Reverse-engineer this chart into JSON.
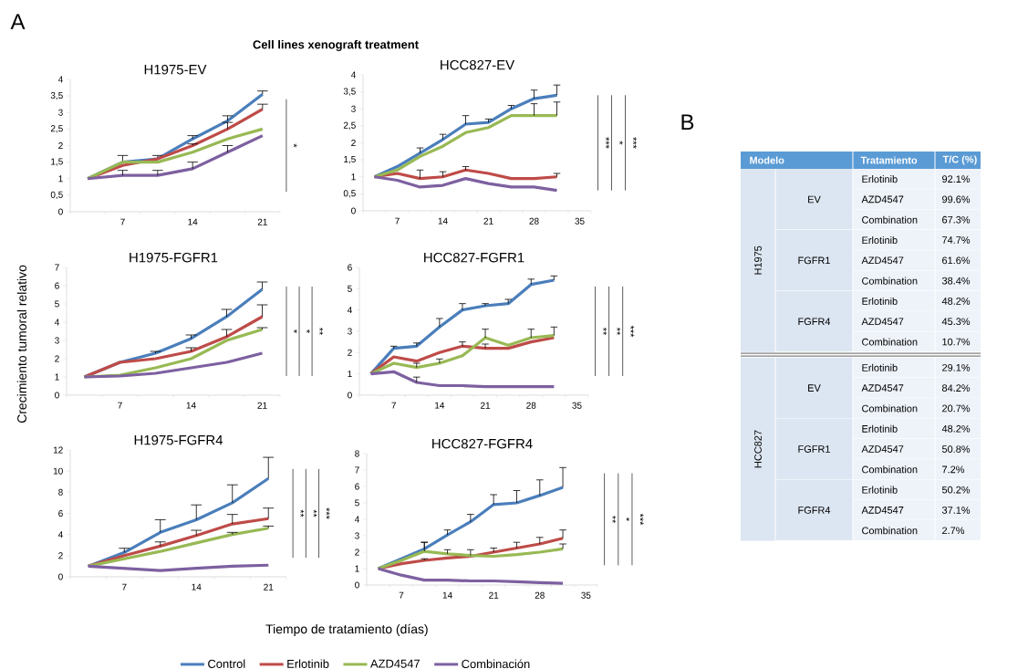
{
  "chart_data": [
    {
      "type": "line",
      "title": "H1975-EV",
      "subtitle": "Cell lines xenograft treatment",
      "annotations": [
        "A",
        "*"
      ],
      "categories": [
        null,
        "7",
        null,
        "14",
        null,
        "21"
      ],
      "ylim": [
        0,
        4
      ],
      "yticks": [
        0,
        {
          "value": 0.5,
          "label": "0,5"
        },
        1,
        {
          "value": 1.5,
          "label": "1,5"
        },
        2,
        {
          "value": 2.5,
          "label": "2,5"
        },
        3,
        {
          "value": 3.5,
          "label": "3,5"
        },
        4
      ],
      "series": [
        {
          "color": "#4a7ebb",
          "values": [
            1,
            1.5,
            1.6,
            2.2,
            2.75,
            3.55
          ],
          "errors": [
            null,
            [
              1.5,
              1.7
            ],
            [
              1.6,
              1.7
            ],
            [
              2.2,
              2.3
            ],
            [
              2.75,
              2.9
            ],
            [
              3.55,
              3.65
            ]
          ]
        },
        {
          "color": "#be4b48",
          "values": [
            1,
            1.4,
            1.6,
            2.0,
            2.5,
            3.1
          ],
          "errors": [
            null,
            null,
            null,
            [
              2.0,
              2.05
            ],
            [
              2.5,
              2.7
            ],
            [
              3.1,
              3.25
            ]
          ]
        },
        {
          "color": "#98b954",
          "values": [
            1,
            1.5,
            1.5,
            1.8,
            2.2,
            2.5
          ]
        },
        {
          "color": "#7d60a0",
          "values": [
            1,
            1.1,
            1.1,
            1.3,
            1.8,
            2.3
          ],
          "errors": [
            null,
            [
              1.1,
              1.25
            ],
            [
              1.1,
              1.25
            ],
            [
              1.3,
              1.5
            ],
            [
              1.8,
              2.0
            ],
            null
          ]
        }
      ]
    },
    {
      "type": "line",
      "title": "HCC827-EV",
      "annotations": [
        "***",
        "*",
        "***"
      ],
      "categories": [
        null,
        "7",
        null,
        "14",
        null,
        "21",
        null,
        "28",
        null,
        "35"
      ],
      "ylim": [
        0,
        4
      ],
      "yticks": [
        0,
        {
          "value": 0.5,
          "label": "0,5"
        },
        1,
        {
          "value": 1.5,
          "label": "1,5"
        },
        2,
        {
          "value": 2.5,
          "label": "2,5"
        },
        3,
        {
          "value": 3.5,
          "label": "3,5"
        },
        4
      ],
      "series": [
        {
          "color": "#4a7ebb",
          "values": [
            1,
            1.3,
            1.7,
            2.1,
            2.55,
            2.6,
            3.0,
            3.3,
            3.4,
            null
          ],
          "errors": [
            null,
            null,
            [
              1.7,
              1.85
            ],
            [
              2.1,
              2.25
            ],
            [
              2.55,
              2.8
            ],
            [
              2.6,
              2.7
            ],
            [
              3.0,
              3.1
            ],
            [
              3.3,
              3.55
            ],
            [
              3.4,
              3.7
            ],
            null
          ]
        },
        {
          "color": "#be4b48",
          "values": [
            1,
            1.1,
            0.95,
            1.0,
            1.2,
            1.1,
            0.95,
            0.95,
            1.0,
            null
          ],
          "errors": [
            null,
            null,
            [
              0.95,
              1.2
            ],
            [
              1.0,
              1.15
            ],
            [
              1.2,
              1.3
            ],
            null,
            null,
            null,
            [
              1.0,
              1.1
            ],
            null
          ]
        },
        {
          "color": "#98b954",
          "values": [
            1,
            1.2,
            1.6,
            1.9,
            2.3,
            2.45,
            2.8,
            2.8,
            2.8,
            null
          ],
          "errors": [
            null,
            null,
            null,
            null,
            null,
            null,
            null,
            [
              2.8,
              3.15
            ],
            [
              2.8,
              3.2
            ],
            null
          ]
        },
        {
          "color": "#7d60a0",
          "values": [
            1,
            0.9,
            0.7,
            0.75,
            0.95,
            0.8,
            0.7,
            0.7,
            0.6,
            null
          ]
        }
      ]
    },
    {
      "type": "line",
      "title": "H1975-FGFR1",
      "ylabel": "Crecimiento tumoral relativo",
      "annotations": [
        "*",
        "*",
        "**"
      ],
      "categories": [
        null,
        "7",
        null,
        "14",
        null,
        "21"
      ],
      "ylim": [
        0,
        7
      ],
      "yticks": [
        0,
        1,
        2,
        3,
        4,
        5,
        6,
        7
      ],
      "series": [
        {
          "color": "#4a7ebb",
          "values": [
            1,
            1.8,
            2.3,
            3.1,
            4.3,
            5.8
          ],
          "errors": [
            null,
            null,
            [
              2.3,
              2.4
            ],
            [
              3.1,
              3.3
            ],
            [
              4.3,
              4.7
            ],
            [
              5.8,
              6.2
            ]
          ]
        },
        {
          "color": "#be4b48",
          "values": [
            1,
            1.8,
            2.0,
            2.4,
            3.2,
            4.3
          ],
          "errors": [
            null,
            null,
            null,
            [
              2.4,
              2.6
            ],
            [
              3.2,
              3.6
            ],
            [
              4.3,
              4.95
            ]
          ]
        },
        {
          "color": "#98b954",
          "values": [
            1,
            1.1,
            1.5,
            2.0,
            3.0,
            3.6
          ],
          "errors": [
            null,
            null,
            null,
            null,
            null,
            [
              3.6,
              3.7
            ]
          ]
        },
        {
          "color": "#7d60a0",
          "values": [
            1,
            1.05,
            1.2,
            1.5,
            1.8,
            2.3
          ]
        }
      ]
    },
    {
      "type": "line",
      "title": "HCC827-FGFR1",
      "annotations": [
        "**",
        "**",
        "***"
      ],
      "categories": [
        null,
        "7",
        null,
        "14",
        null,
        "21",
        null,
        "28",
        null,
        "35"
      ],
      "ylim": [
        0,
        6
      ],
      "yticks": [
        0,
        1,
        2,
        3,
        4,
        5,
        6
      ],
      "series": [
        {
          "color": "#4a7ebb",
          "values": [
            1,
            2.2,
            2.3,
            3.2,
            4.0,
            4.2,
            4.3,
            5.2,
            5.4,
            null
          ],
          "errors": [
            null,
            [
              2.2,
              2.3
            ],
            [
              2.3,
              2.45
            ],
            [
              3.2,
              3.6
            ],
            [
              4.0,
              4.3
            ],
            [
              4.2,
              4.3
            ],
            [
              4.3,
              4.5
            ],
            [
              5.2,
              5.45
            ],
            [
              5.4,
              5.6
            ],
            null
          ]
        },
        {
          "color": "#be4b48",
          "values": [
            1,
            1.8,
            1.6,
            2.0,
            2.3,
            2.2,
            2.2,
            2.5,
            2.7,
            null
          ],
          "errors": [
            null,
            null,
            null,
            null,
            [
              2.3,
              2.5
            ],
            [
              2.2,
              2.4
            ],
            null,
            null,
            null,
            null
          ]
        },
        {
          "color": "#98b954",
          "values": [
            1,
            1.5,
            1.3,
            1.5,
            1.85,
            2.7,
            2.35,
            2.7,
            2.8,
            null
          ],
          "errors": [
            null,
            null,
            [
              1.3,
              1.5
            ],
            [
              1.5,
              1.7
            ],
            null,
            [
              2.7,
              3.1
            ],
            null,
            [
              2.7,
              3.1
            ],
            [
              2.8,
              3.2
            ],
            null
          ]
        },
        {
          "color": "#7d60a0",
          "values": [
            1,
            1.1,
            0.6,
            0.45,
            0.45,
            0.4,
            0.4,
            0.4,
            0.4,
            null
          ],
          "errors": [
            null,
            null,
            [
              0.6,
              0.85
            ],
            null,
            null,
            null,
            null,
            null,
            null,
            null
          ]
        }
      ]
    },
    {
      "type": "line",
      "title": "H1975-FGFR4",
      "xlabel": "Tiempo de tratamiento (días)",
      "annotations": [
        "**",
        "**",
        "***"
      ],
      "legend": "bottom",
      "categories": [
        null,
        "7",
        null,
        "14",
        null,
        "21"
      ],
      "ylim": [
        0,
        12
      ],
      "yticks": [
        0,
        2,
        4,
        6,
        8,
        10,
        12
      ],
      "series": [
        {
          "name": "Control",
          "color": "#4a7ebb",
          "values": [
            1,
            2.3,
            4.2,
            5.4,
            7.0,
            9.3
          ],
          "errors": [
            null,
            [
              2.3,
              2.7
            ],
            [
              4.2,
              5.4
            ],
            [
              5.4,
              6.8
            ],
            [
              7.0,
              8.7
            ],
            [
              9.3,
              11.3
            ]
          ]
        },
        {
          "name": "Erlotinib",
          "color": "#be4b48",
          "values": [
            1,
            2.0,
            2.9,
            3.9,
            5.0,
            5.5
          ],
          "errors": [
            null,
            null,
            [
              2.9,
              3.3
            ],
            [
              3.9,
              4.4
            ],
            [
              5.0,
              5.9
            ],
            [
              5.5,
              6.5
            ]
          ]
        },
        {
          "name": "AZD4547",
          "color": "#98b954",
          "values": [
            1,
            1.7,
            2.4,
            3.2,
            4.0,
            4.6
          ],
          "errors": [
            null,
            null,
            null,
            null,
            [
              4.0,
              4.2
            ],
            [
              4.6,
              4.8
            ]
          ]
        },
        {
          "name": "Combinación",
          "color": "#7d60a0",
          "values": [
            1,
            0.8,
            0.6,
            0.8,
            1.0,
            1.1
          ]
        }
      ]
    },
    {
      "type": "line",
      "title": "HCC827-FGFR4",
      "annotations": [
        "**",
        "*",
        "***"
      ],
      "categories": [
        null,
        "7",
        null,
        "14",
        null,
        "21",
        null,
        "28",
        null,
        "35"
      ],
      "ylim": [
        0,
        8
      ],
      "yticks": [
        0,
        1,
        2,
        3,
        4,
        5,
        6,
        7,
        8
      ],
      "series": [
        {
          "color": "#4a7ebb",
          "values": [
            1,
            1.6,
            2.2,
            3.05,
            3.85,
            4.9,
            5.0,
            5.45,
            5.95,
            null
          ],
          "errors": [
            null,
            null,
            [
              2.2,
              2.6
            ],
            [
              3.05,
              3.35
            ],
            [
              3.85,
              4.3
            ],
            [
              4.9,
              5.5
            ],
            [
              5.0,
              5.75
            ],
            [
              5.45,
              6.4
            ],
            [
              5.95,
              7.15
            ],
            null
          ]
        },
        {
          "color": "#be4b48",
          "values": [
            1,
            1.3,
            1.5,
            1.65,
            1.75,
            2.0,
            2.25,
            2.5,
            2.85,
            null
          ],
          "errors": [
            null,
            null,
            [
              1.5,
              1.6
            ],
            null,
            null,
            [
              2.0,
              2.25
            ],
            [
              2.25,
              2.6
            ],
            [
              2.5,
              2.9
            ],
            [
              2.85,
              3.35
            ],
            null
          ]
        },
        {
          "color": "#98b954",
          "values": [
            1,
            1.5,
            2.05,
            1.9,
            1.8,
            1.75,
            1.85,
            2.0,
            2.2,
            null
          ],
          "errors": [
            null,
            null,
            [
              2.05,
              2.6
            ],
            [
              1.9,
              2.15
            ],
            [
              1.8,
              2.15
            ],
            null,
            null,
            null,
            [
              2.2,
              2.5
            ],
            null
          ]
        },
        {
          "color": "#7d60a0",
          "values": [
            1,
            0.6,
            0.3,
            0.3,
            0.25,
            0.25,
            0.2,
            0.15,
            0.1,
            null
          ]
        }
      ]
    },
    {
      "type": "other",
      "categories": [
        "Modelo",
        "Tratamiento",
        "T/C (%)"
      ],
      "annotations": [
        "B",
        "H1975",
        "EV",
        "Erlotinib",
        "92.1%",
        "AZD4547",
        "99.6%",
        "Combination",
        "67.3%",
        "FGFR1",
        "Erlotinib",
        "74.7%",
        "AZD4547",
        "61.6%",
        "Combination",
        "38.4%",
        "FGFR4",
        "Erlotinib",
        "48.2%",
        "AZD4547",
        "45.3%",
        "Combination",
        "10.7%",
        "HCC827",
        "EV",
        "Erlotinib",
        "29.1%",
        "AZD4547",
        "84.2%",
        "Combination",
        "20.7%",
        "FGFR1",
        "Erlotinib",
        "48.2%",
        "AZD4547",
        "50.8%",
        "Combination",
        "7.2%",
        "FGFR4",
        "Erlotinib",
        "50.2%",
        "AZD4547",
        "37.1%",
        "Combination",
        "2.7%"
      ]
    }
  ]
}
